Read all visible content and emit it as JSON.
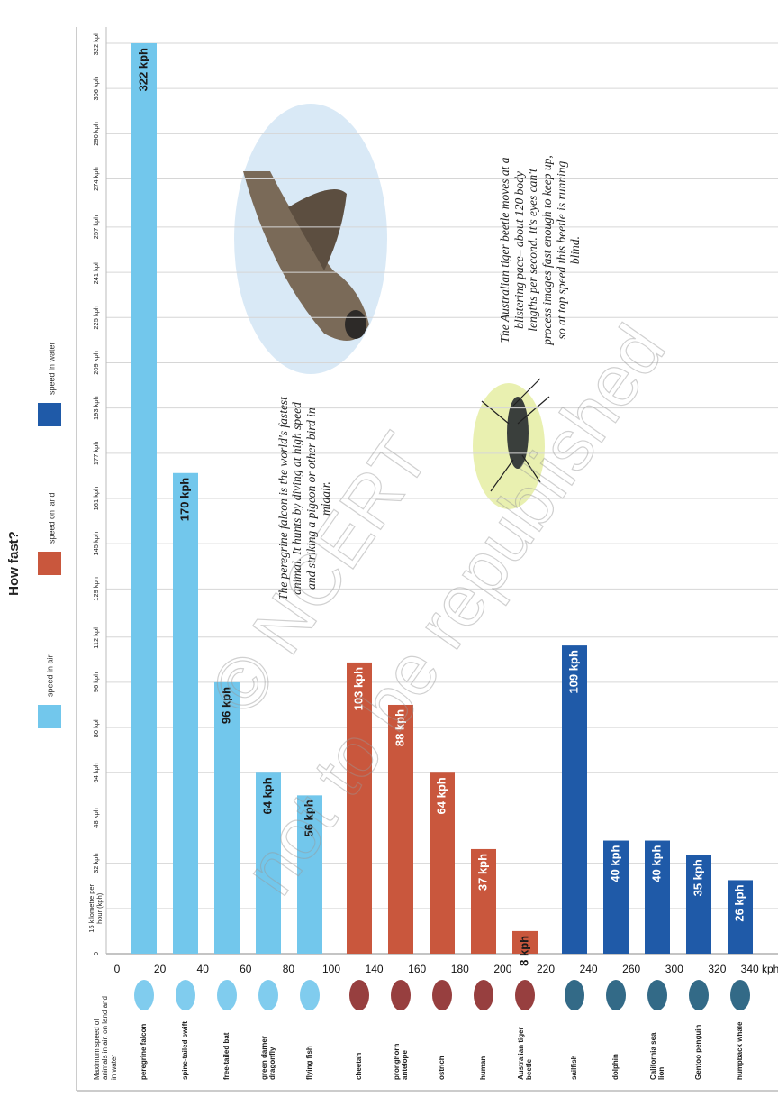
{
  "chart_data": {
    "type": "bar",
    "title": "How fast?",
    "axis_title": "Maximum speed of animals in air, on land and in water",
    "categories": [
      "peregrine falcon",
      "spine-tailed swift",
      "free-tailed bat",
      "green darner dragonfly",
      "flying fish",
      "cheetah",
      "pronghorn antelope",
      "ostrich",
      "human",
      "Australian tiger beetle",
      "sailfish",
      "dolphin",
      "California sea lion",
      "Gentoo penguin",
      "humpback whale"
    ],
    "series": [
      {
        "name": "speed in air",
        "color": "#72c7ec",
        "values": [
          322,
          170,
          96,
          64,
          56,
          null,
          null,
          null,
          null,
          null,
          null,
          null,
          null,
          null,
          null
        ],
        "value_labels": [
          "322 kph",
          "170 kph",
          "96 kph",
          "64 kph",
          "56 kph",
          null,
          null,
          null,
          null,
          null,
          null,
          null,
          null,
          null,
          null
        ]
      },
      {
        "name": "speed on land",
        "color": "#c9573d",
        "values": [
          null,
          null,
          null,
          null,
          null,
          103,
          88,
          64,
          37,
          8,
          null,
          null,
          null,
          null,
          null
        ],
        "value_labels": [
          null,
          null,
          null,
          null,
          null,
          "103 kph",
          "88 kph",
          "64 kph",
          "37 kph",
          "8 kph",
          null,
          null,
          null,
          null,
          null
        ]
      },
      {
        "name": "speed in water",
        "color": "#1f5aa8",
        "values": [
          null,
          null,
          null,
          null,
          null,
          null,
          null,
          null,
          null,
          null,
          109,
          40,
          40,
          35,
          26
        ],
        "value_labels": [
          null,
          null,
          null,
          null,
          null,
          null,
          null,
          null,
          null,
          null,
          "109 kph",
          "40 kph",
          "40 kph",
          "35 kph",
          "26 kph"
        ]
      }
    ],
    "ylim": [
      0,
      322
    ],
    "yticks": [
      0,
      {
        "value": 16,
        "label": "16 kilometre per hour (kph)"
      },
      {
        "value": 32,
        "label": "32 kph"
      },
      {
        "value": 48,
        "label": "48 kph"
      },
      {
        "value": 64,
        "label": "64 kph"
      },
      {
        "value": 80,
        "label": "80 kph"
      },
      {
        "value": 96,
        "label": "96 kph"
      },
      {
        "value": 112,
        "label": "112 kph"
      },
      {
        "value": 129,
        "label": "129 kph"
      },
      {
        "value": 145,
        "label": "145 kph"
      },
      {
        "value": 161,
        "label": "161 kph"
      },
      {
        "value": 177,
        "label": "177 kph"
      },
      {
        "value": 193,
        "label": "193 kph"
      },
      {
        "value": 209,
        "label": "209 kph"
      },
      {
        "value": 225,
        "label": "225 kph"
      },
      {
        "value": 241,
        "label": "241 kph"
      },
      {
        "value": 257,
        "label": "257 kph"
      },
      {
        "value": 274,
        "label": "274 kph"
      },
      {
        "value": 290,
        "label": "290 kph"
      },
      {
        "value": 306,
        "label": "306 kph"
      },
      {
        "value": 322,
        "label": "322 kph"
      }
    ],
    "grid": true,
    "scale_labels": [
      0,
      20,
      40,
      60,
      80,
      100,
      140,
      160,
      180,
      200,
      220,
      240,
      260,
      300,
      320,
      "340 kph"
    ],
    "annotations": [
      "The peregrine falcon is the world's fastest animal. It hunts by diving at high speed and striking a pigeon or other bird in midair.",
      "The Australian tiger beetle moves at a blistering pace– about 120 body lengths per second. It's eyes can't process images fast enough to keep up, so at top speed this beetle is running blind."
    ],
    "watermark": [
      "© NCERT",
      "not to be republished"
    ]
  }
}
